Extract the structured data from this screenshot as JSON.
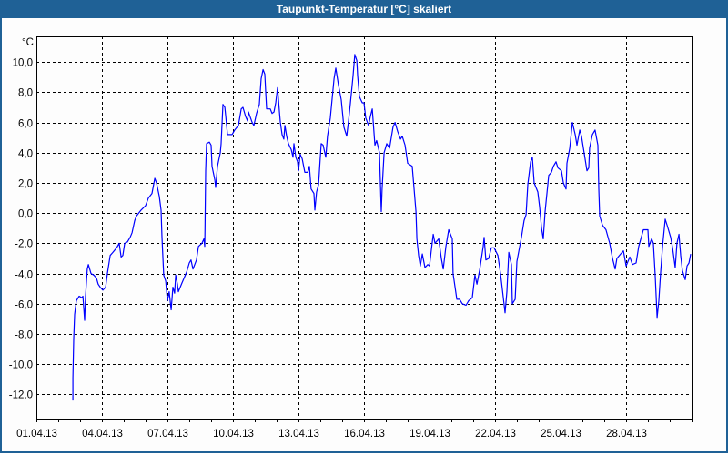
{
  "window": {
    "title": "Taupunkt-Temperatur [°C] skaliert"
  },
  "colors": {
    "titlebar": "#1f6196",
    "line": "#0000ff",
    "grid": "#000000"
  },
  "chart_data": {
    "type": "line",
    "title": "Taupunkt-Temperatur [°C] skaliert",
    "ylabel": "°C",
    "xlabel": "",
    "x_unit": "days since 01.04.13",
    "xlim": [
      0,
      30
    ],
    "ylim": [
      -13.6,
      11.7
    ],
    "grid": true,
    "x_ticks": [
      0,
      3,
      6,
      9,
      12,
      15,
      18,
      21,
      24,
      27
    ],
    "x_tick_labels": [
      "01.04.13",
      "04.04.13",
      "07.04.13",
      "10.04.13",
      "13.04.13",
      "16.04.13",
      "19.04.13",
      "22.04.13",
      "25.04.13",
      "28.04.13"
    ],
    "y_ticks": [
      10,
      8,
      6,
      4,
      2,
      0,
      -2,
      -4,
      -6,
      -8,
      -10,
      -12
    ],
    "y_tick_labels": [
      "10,0",
      "8,0",
      "6,0",
      "4,0",
      "2,0",
      "0,0",
      "-2,0",
      "-4,0",
      "-6,0",
      "-8,0",
      "-10,0",
      "-12,0"
    ],
    "series": [
      {
        "name": "Taupunkt-Temperatur",
        "x": [
          1.67,
          1.67,
          1.71,
          1.75,
          1.83,
          1.96,
          2.08,
          2.13,
          2.21,
          2.25,
          2.33,
          2.38,
          2.5,
          2.63,
          2.75,
          2.83,
          2.92,
          3.04,
          3.17,
          3.25,
          3.38,
          3.5,
          3.67,
          3.79,
          3.88,
          3.96,
          4.04,
          4.17,
          4.29,
          4.38,
          4.5,
          4.58,
          4.79,
          5.0,
          5.13,
          5.29,
          5.42,
          5.5,
          5.63,
          5.71,
          5.75,
          5.83,
          5.92,
          6.0,
          6.08,
          6.17,
          6.25,
          6.33,
          6.38,
          6.46,
          6.5,
          6.67,
          6.88,
          7.0,
          7.08,
          7.17,
          7.33,
          7.42,
          7.58,
          7.67,
          7.71,
          7.72,
          7.75,
          7.79,
          7.92,
          8.0,
          8.04,
          8.17,
          8.21,
          8.29,
          8.42,
          8.46,
          8.54,
          8.63,
          8.67,
          8.75,
          8.83,
          8.96,
          9.08,
          9.25,
          9.38,
          9.46,
          9.58,
          9.67,
          9.71,
          9.88,
          9.96,
          10.08,
          10.21,
          10.29,
          10.38,
          10.46,
          10.5,
          10.54,
          10.71,
          10.79,
          10.88,
          10.96,
          11.04,
          11.08,
          11.13,
          11.17,
          11.25,
          11.33,
          11.38,
          11.46,
          11.54,
          11.67,
          11.75,
          11.79,
          11.88,
          11.96,
          12.0,
          12.08,
          12.17,
          12.29,
          12.42,
          12.5,
          12.58,
          12.71,
          12.75,
          12.83,
          12.92,
          13.0,
          13.04,
          13.13,
          13.25,
          13.33,
          13.46,
          13.63,
          13.71,
          13.83,
          13.96,
          14.08,
          14.21,
          14.29,
          14.38,
          14.5,
          14.58,
          14.67,
          14.71,
          14.79,
          14.92,
          15.0,
          15.08,
          15.21,
          15.29,
          15.38,
          15.5,
          15.58,
          15.71,
          15.79,
          15.83,
          15.92,
          16.04,
          16.17,
          16.33,
          16.42,
          16.54,
          16.67,
          16.75,
          16.88,
          17.0,
          17.21,
          17.38,
          17.42,
          17.5,
          17.58,
          17.67,
          17.79,
          17.92,
          18.0,
          18.08,
          18.17,
          18.25,
          18.42,
          18.54,
          18.63,
          18.75,
          18.88,
          19.04,
          19.08,
          19.25,
          19.38,
          19.5,
          19.67,
          19.79,
          19.96,
          20.08,
          20.17,
          20.29,
          20.46,
          20.5,
          20.58,
          20.71,
          20.83,
          20.96,
          21.13,
          21.25,
          21.38,
          21.46,
          21.54,
          21.63,
          21.75,
          21.79,
          21.92,
          22.0,
          22.13,
          22.21,
          22.33,
          22.42,
          22.5,
          22.63,
          22.71,
          22.79,
          22.96,
          23.04,
          23.13,
          23.21,
          23.29,
          23.46,
          23.58,
          23.67,
          23.79,
          23.88,
          24.04,
          24.13,
          24.25,
          24.29,
          24.42,
          24.54,
          24.67,
          24.75,
          24.88,
          24.96,
          25.08,
          25.21,
          25.29,
          25.33,
          25.46,
          25.58,
          25.71,
          25.75,
          25.79,
          25.92,
          26.08,
          26.25,
          26.38,
          26.5,
          26.58,
          26.75,
          26.88,
          27.0,
          27.17,
          27.29,
          27.46,
          27.58,
          27.79,
          28.0,
          28.04,
          28.17,
          28.25,
          28.33,
          28.42,
          28.5,
          28.58,
          28.67,
          28.79,
          28.88,
          29.04,
          29.13,
          29.25,
          29.33,
          29.42,
          29.5,
          29.58,
          29.71,
          29.79,
          29.88,
          29.96
        ],
        "y": [
          -12.4,
          -10.9,
          -8.3,
          -6.7,
          -5.8,
          -5.5,
          -5.6,
          -5.5,
          -7.1,
          -5.5,
          -3.7,
          -3.4,
          -4.0,
          -4.1,
          -4.3,
          -4.7,
          -4.9,
          -5.1,
          -4.9,
          -4.0,
          -2.8,
          -2.6,
          -2.3,
          -2.0,
          -2.9,
          -2.8,
          -2.0,
          -1.9,
          -1.6,
          -1.3,
          -0.5,
          -0.2,
          0.2,
          0.5,
          1.0,
          1.3,
          2.3,
          2.0,
          1.1,
          0.2,
          -1.6,
          -4.1,
          -4.5,
          -5.8,
          -5.2,
          -6.4,
          -4.9,
          -5.3,
          -4.1,
          -4.7,
          -5.2,
          -4.6,
          -3.9,
          -3.3,
          -3.1,
          -3.7,
          -3.1,
          -2.2,
          -2.0,
          -1.7,
          -2.2,
          -1.0,
          2.8,
          4.6,
          4.7,
          4.5,
          3.1,
          2.2,
          1.7,
          3.1,
          4.0,
          4.6,
          7.2,
          7.0,
          6.4,
          5.2,
          5.2,
          5.2,
          5.5,
          5.8,
          6.9,
          7.0,
          6.4,
          6.1,
          6.7,
          6.0,
          5.8,
          6.6,
          7.2,
          8.9,
          9.5,
          9.2,
          8.0,
          6.9,
          6.9,
          6.6,
          6.7,
          7.3,
          8.3,
          7.6,
          6.7,
          6.0,
          5.2,
          4.9,
          5.8,
          5.1,
          4.6,
          4.2,
          3.7,
          4.6,
          3.7,
          3.4,
          2.8,
          3.9,
          3.6,
          2.7,
          2.7,
          3.1,
          1.6,
          1.3,
          0.2,
          1.4,
          1.9,
          3.7,
          4.6,
          4.5,
          3.7,
          5.1,
          6.3,
          8.9,
          9.6,
          8.5,
          7.5,
          5.7,
          5.1,
          6.1,
          7.3,
          9.1,
          10.5,
          10.1,
          9.1,
          7.7,
          7.3,
          7.3,
          6.3,
          5.8,
          6.4,
          6.9,
          4.5,
          4.8,
          4.0,
          0.1,
          1.6,
          4.0,
          4.6,
          4.3,
          5.7,
          6.0,
          5.4,
          4.9,
          5.1,
          4.5,
          3.3,
          3.1,
          0.1,
          -1.7,
          -2.8,
          -3.5,
          -2.7,
          -3.6,
          -3.4,
          -3.5,
          -2.5,
          -1.4,
          -2.0,
          -1.7,
          -3.0,
          -3.7,
          -2.2,
          -1.1,
          -1.7,
          -4.0,
          -5.7,
          -5.7,
          -6.0,
          -6.1,
          -5.8,
          -5.6,
          -4.1,
          -4.7,
          -3.8,
          -2.2,
          -1.6,
          -3.1,
          -3.0,
          -2.3,
          -2.3,
          -2.8,
          -4.0,
          -5.6,
          -6.6,
          -5.2,
          -2.6,
          -3.4,
          -6.0,
          -5.7,
          -3.2,
          -2.2,
          -1.6,
          -0.5,
          -0.1,
          1.9,
          3.4,
          3.7,
          2.0,
          1.4,
          0.4,
          -1.0,
          -1.7,
          0.1,
          2.5,
          2.7,
          3.1,
          3.4,
          3.0,
          2.8,
          2.0,
          1.6,
          3.3,
          4.3,
          6.0,
          5.2,
          4.5,
          5.5,
          5.1,
          4.0,
          2.8,
          3.0,
          4.3,
          5.2,
          5.5,
          4.5,
          1.6,
          -0.2,
          -0.8,
          -1.1,
          -2.0,
          -3.0,
          -3.7,
          -3.0,
          -2.7,
          -2.5,
          -3.5,
          -2.9,
          -3.4,
          -3.3,
          -2.2,
          -1.1,
          -1.1,
          -2.2,
          -1.7,
          -2.0,
          -4.0,
          -6.9,
          -5.8,
          -4.0,
          -2.2,
          -0.4,
          -0.8,
          -1.6,
          -2.3,
          -3.6,
          -2.0,
          -1.4,
          -2.8,
          -3.8,
          -4.4,
          -3.5,
          -3.3,
          -2.7
        ]
      }
    ]
  }
}
